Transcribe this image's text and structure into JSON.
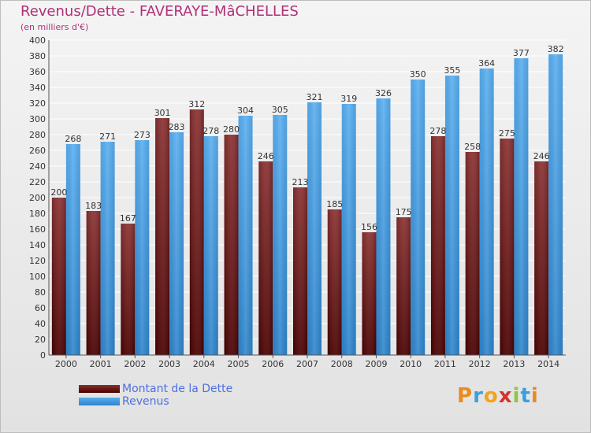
{
  "title": "Revenus/Dette - FAVERAYE-MâCHELLES",
  "subtitle": "(en milliers d'€)",
  "colors": {
    "title": "#b03078",
    "dette": "#7a2020",
    "revenus": "#4aa3e6",
    "legend_text": "#4d6fe0"
  },
  "chart_data": {
    "type": "bar",
    "categories": [
      "2000",
      "2001",
      "2002",
      "2003",
      "2004",
      "2005",
      "2006",
      "2007",
      "2008",
      "2009",
      "2010",
      "2011",
      "2012",
      "2013",
      "2014"
    ],
    "series": [
      {
        "name": "Montant de la Dette",
        "values": [
          200,
          183,
          167,
          301,
          312,
          280,
          246,
          213,
          185,
          156,
          175,
          278,
          258,
          275,
          246
        ]
      },
      {
        "name": "Revenus",
        "values": [
          268,
          271,
          273,
          283,
          278,
          304,
          305,
          321,
          319,
          326,
          350,
          355,
          364,
          377,
          382
        ]
      }
    ],
    "ylim": [
      0,
      400
    ],
    "yticks": [
      0,
      20,
      40,
      60,
      80,
      100,
      120,
      140,
      160,
      180,
      200,
      220,
      240,
      260,
      280,
      300,
      320,
      340,
      360,
      380,
      400
    ],
    "grid": true,
    "legend_position": "bottom-left"
  },
  "legend": [
    {
      "label": "Montant de la Dette",
      "icon": "dark-red-gradient-swatch"
    },
    {
      "label": "Revenus",
      "icon": "blue-gradient-swatch"
    }
  ],
  "logo": {
    "text": "Proxiti",
    "letters": [
      "P",
      "r",
      "o",
      "x",
      "i",
      "t",
      "i"
    ],
    "icon": "proxiti-logo"
  }
}
